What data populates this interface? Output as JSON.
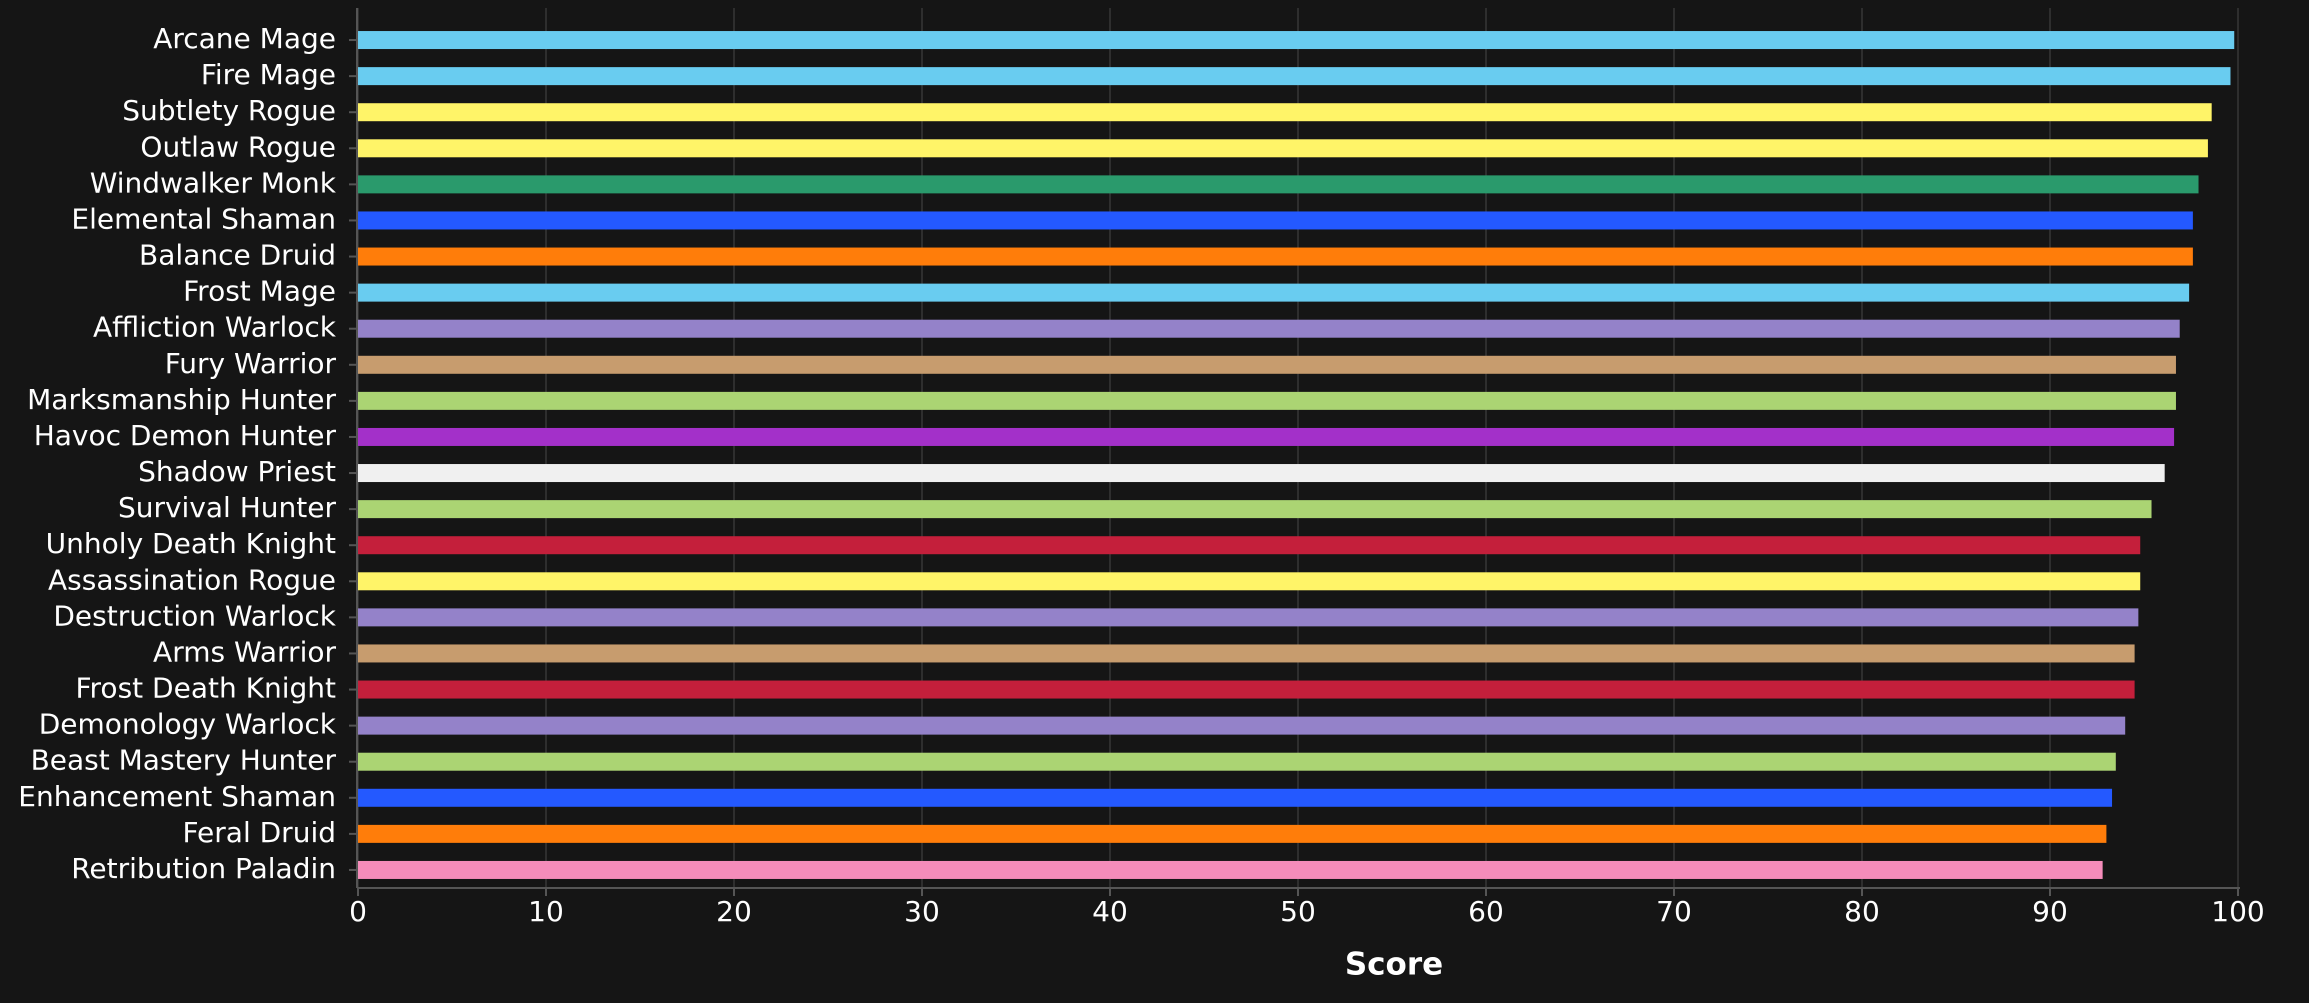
{
  "chart_data": {
    "type": "bar",
    "orientation": "horizontal",
    "x_label": "Score",
    "categories": [
      "Arcane Mage",
      "Fire Mage",
      "Subtlety Rogue",
      "Outlaw Rogue",
      "Windwalker Monk",
      "Elemental Shaman",
      "Balance Druid",
      "Frost Mage",
      "Affliction Warlock",
      "Fury Warrior",
      "Marksmanship Hunter",
      "Havoc Demon Hunter",
      "Shadow Priest",
      "Survival Hunter",
      "Unholy Death Knight",
      "Assassination Rogue",
      "Destruction Warlock",
      "Arms Warrior",
      "Frost Death Knight",
      "Demonology Warlock",
      "Beast Mastery Hunter",
      "Enhancement Shaman",
      "Feral Druid",
      "Retribution Paladin"
    ],
    "values": [
      99.8,
      99.6,
      98.6,
      98.4,
      97.9,
      97.6,
      97.6,
      97.4,
      96.9,
      96.7,
      96.7,
      96.6,
      96.1,
      95.4,
      94.8,
      94.8,
      94.7,
      94.5,
      94.5,
      94.0,
      93.5,
      93.3,
      93.0,
      92.8
    ],
    "colors": [
      "#69ccf0",
      "#69ccf0",
      "#fff468",
      "#fff468",
      "#2a9a6c",
      "#2459ff",
      "#ff7d0a",
      "#69ccf0",
      "#9482c9",
      "#c79c6e",
      "#abd473",
      "#a330c9",
      "#f0f0f0",
      "#abd473",
      "#c41f3b",
      "#fff468",
      "#9482c9",
      "#c79c6e",
      "#c41f3b",
      "#9482c9",
      "#abd473",
      "#2459ff",
      "#ff7d0a",
      "#f58cba"
    ],
    "xlim": [
      0,
      100
    ],
    "xticks": [
      0,
      10,
      20,
      30,
      40,
      50,
      60,
      70,
      80,
      90,
      100
    ],
    "grid": true
  }
}
